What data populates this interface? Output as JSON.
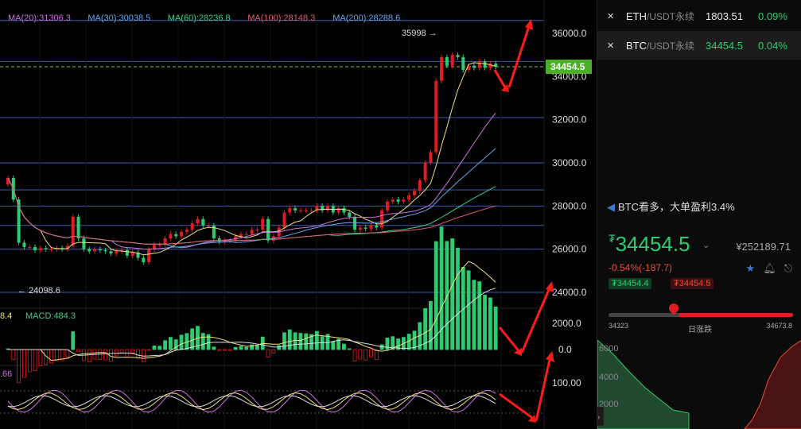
{
  "chart_data": {
    "type": "candlestick",
    "indicators": {
      "ma": [
        {
          "label": "MA(20):31306.3",
          "color": "#d16fe0"
        },
        {
          "label": "MA(30):30038.5",
          "color": "#6aa6e8"
        },
        {
          "label": "MA(60):28236.8",
          "color": "#3fd18a"
        },
        {
          "label": "MA(100):28148.3",
          "color": "#e35a6a"
        },
        {
          "label": "MA(200):28288.6",
          "color": "#6aa6e8"
        }
      ],
      "macd_label": "MACD:484.3",
      "macd_prefix": "8.4",
      "kdj_prefix": ".66"
    },
    "y_ticks": [
      "36000.0",
      "34000.0",
      "32000.0",
      "30000.0",
      "28000.0",
      "26000.0",
      "24000.0"
    ],
    "macd_ticks": [
      "2000.0",
      "0.0"
    ],
    "kdj_ticks": [
      "100.00"
    ],
    "last_price": "34454.5",
    "high_marker": "35998",
    "low_marker": "24098.6",
    "closes": [
      29300,
      28300,
      26300,
      26100,
      26100,
      25950,
      26050,
      26000,
      26000,
      26050,
      26000,
      26150,
      27500,
      26500,
      26000,
      25900,
      26000,
      25950,
      25900,
      25800,
      25900,
      25950,
      25700,
      25850,
      25600,
      25400,
      26000,
      26200,
      26200,
      26500,
      26700,
      26600,
      26800,
      26900,
      27200,
      27400,
      27100,
      27100,
      26500,
      26350,
      26400,
      26400,
      26600,
      26700,
      26700,
      26900,
      26900,
      27400,
      26400,
      26600,
      27000,
      27700,
      27900,
      27800,
      27800,
      27800,
      27800,
      28000,
      27800,
      28000,
      27700,
      27900,
      27700,
      27500,
      26900,
      27000,
      26950,
      27100,
      27000,
      27800,
      28200,
      28300,
      28200,
      28300,
      28500,
      28700,
      29200,
      30000,
      30500,
      33800,
      34900,
      34500,
      35000,
      34900,
      34300,
      34500,
      34400,
      34700,
      34400,
      34600,
      34454
    ],
    "opens": [
      29000,
      29300,
      28300,
      26300,
      26100,
      26100,
      25950,
      26050,
      26000,
      26000,
      26050,
      26000,
      26150,
      27500,
      26500,
      26000,
      25900,
      26000,
      25950,
      25900,
      25800,
      25900,
      25950,
      25700,
      25850,
      25600,
      25400,
      26000,
      26200,
      26200,
      26500,
      26700,
      26600,
      26800,
      26900,
      27200,
      27400,
      27100,
      27100,
      26500,
      26350,
      26400,
      26400,
      26600,
      26700,
      26700,
      26900,
      26900,
      27400,
      26400,
      26600,
      27000,
      27700,
      27900,
      27800,
      27800,
      27800,
      27800,
      28000,
      27800,
      28000,
      27700,
      27900,
      27700,
      27500,
      26900,
      27000,
      26950,
      27100,
      27000,
      27800,
      28200,
      28300,
      28200,
      28300,
      28500,
      28700,
      29200,
      30000,
      30500,
      33800,
      34900,
      34500,
      35000,
      34900,
      34300,
      34500,
      34400,
      34700,
      34400,
      34600
    ]
  },
  "panel": {
    "markets": [
      {
        "symbol": "ETH",
        "pair": "/USDT永续",
        "price": "1803.51",
        "change": "0.09%"
      },
      {
        "symbol": "BTC",
        "pair": "/USDT永续",
        "price": "34454.5",
        "change": "0.04%"
      }
    ],
    "news": "BTC看多，大单盈利3.4%",
    "currency": "₮",
    "big_price": "34454.5",
    "cny": "¥252189.71",
    "change": "-0.54%(-187.7)",
    "bid": "₮34454.4",
    "ask": "₮34454.5",
    "range_low": "34323",
    "range_high": "34673.8",
    "range_label": "日涨跌",
    "depth_ticks": [
      "6000",
      "4000",
      "2000"
    ]
  }
}
